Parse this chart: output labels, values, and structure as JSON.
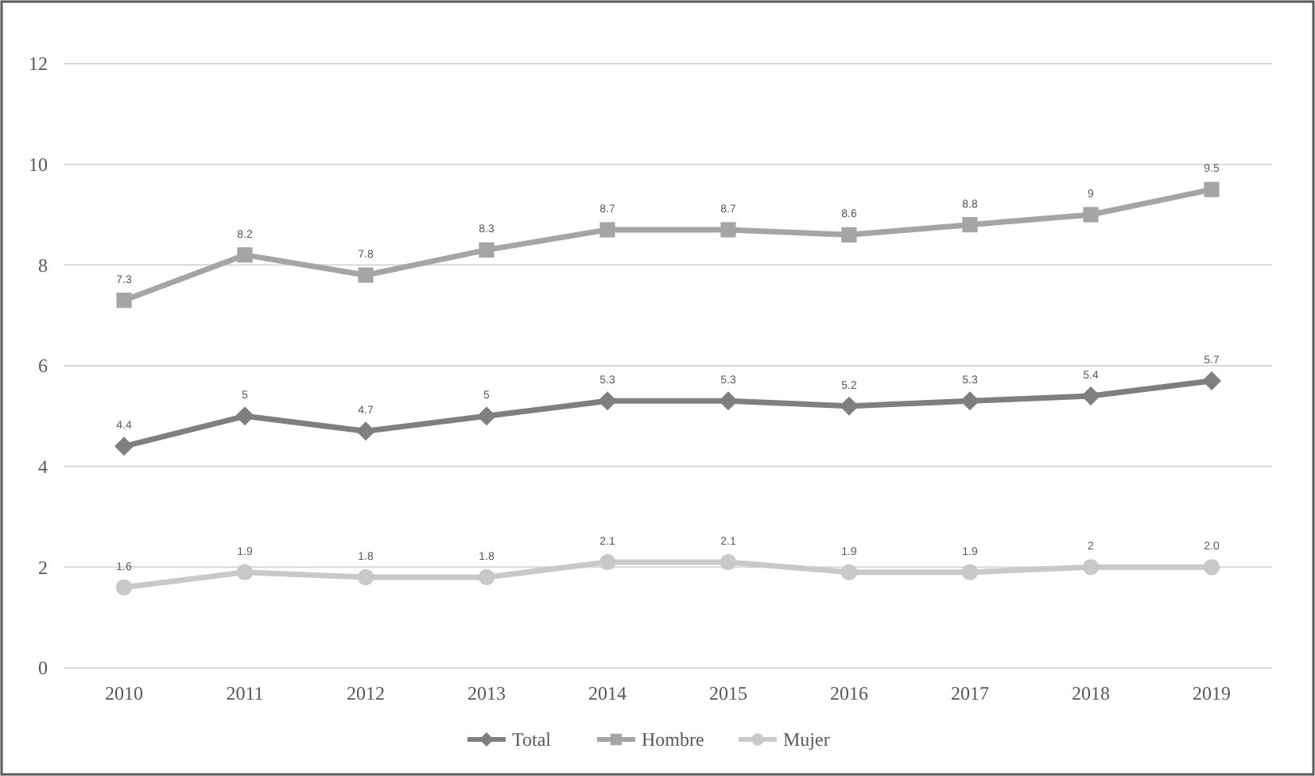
{
  "chart_data": {
    "type": "line",
    "categories": [
      "2010",
      "2011",
      "2012",
      "2013",
      "2014",
      "2015",
      "2016",
      "2017",
      "2018",
      "2019"
    ],
    "series": [
      {
        "name": "Total",
        "color": "#7f7f7f",
        "marker": "diamond",
        "values": [
          4.4,
          5,
          4.7,
          5,
          5.3,
          5.3,
          5.2,
          5.3,
          5.4,
          5.7
        ],
        "value_labels": [
          "4.4",
          "5",
          "4.7",
          "5",
          "5.3",
          "5.3",
          "5.2",
          "5.3",
          "5.4",
          "5.7"
        ]
      },
      {
        "name": "Hombre",
        "color": "#a5a5a5",
        "marker": "square",
        "values": [
          7.3,
          8.2,
          7.8,
          8.3,
          8.7,
          8.7,
          8.6,
          8.8,
          9,
          9.5
        ],
        "value_labels": [
          "7.3",
          "8.2",
          "7.8",
          "8.3",
          "8.7",
          "8.7",
          "8.6",
          "8.8",
          "9",
          "9.5"
        ]
      },
      {
        "name": "Mujer",
        "color": "#c9c9c9",
        "marker": "circle",
        "values": [
          1.6,
          1.9,
          1.8,
          1.8,
          2.1,
          2.1,
          1.9,
          1.9,
          2,
          2
        ],
        "value_labels": [
          "1.6",
          "1.9",
          "1.8",
          "1.8",
          "2.1",
          "2.1",
          "1.9",
          "1.9",
          "2",
          "2.0"
        ]
      }
    ],
    "ylim": [
      0,
      12
    ],
    "yticks": [
      0,
      2,
      4,
      6,
      8,
      10,
      12
    ],
    "grid": "y",
    "legend": "bottom",
    "line_style": "solid"
  }
}
